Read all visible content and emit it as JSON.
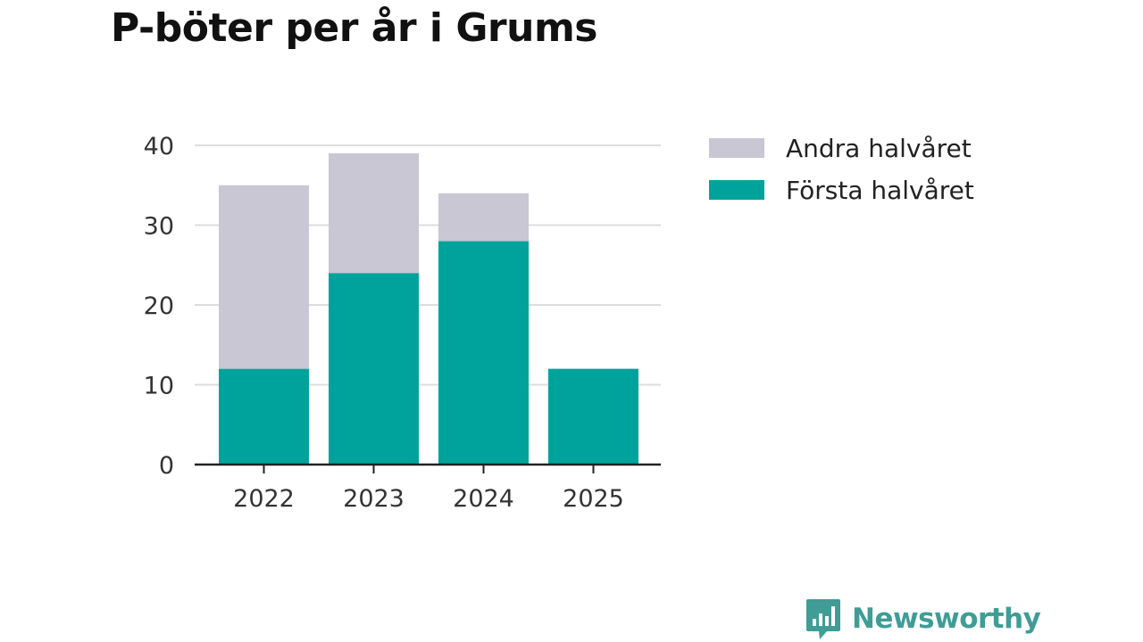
{
  "chart_data": {
    "type": "bar",
    "stacked": true,
    "title": "P-böter per år i Grums",
    "xlabel": "",
    "ylabel": "",
    "categories": [
      "2022",
      "2023",
      "2024",
      "2025"
    ],
    "series": [
      {
        "name": "Första halvåret",
        "values": [
          12,
          24,
          28,
          12
        ],
        "color": "#00a39b"
      },
      {
        "name": "Andra halvåret",
        "values": [
          23,
          15,
          6,
          0
        ],
        "color": "#c8c7d3"
      }
    ],
    "ylim": [
      0,
      40
    ],
    "yticks": [
      "0",
      "10",
      "20",
      "30",
      "40"
    ],
    "grid": true,
    "legend": [
      "Andra halvåret",
      "Första halvåret"
    ],
    "legend_position": "right"
  },
  "brand": {
    "name": "Newsworthy",
    "logo_icon": "newsworthy-logo-icon",
    "color": "#3f9d96"
  }
}
